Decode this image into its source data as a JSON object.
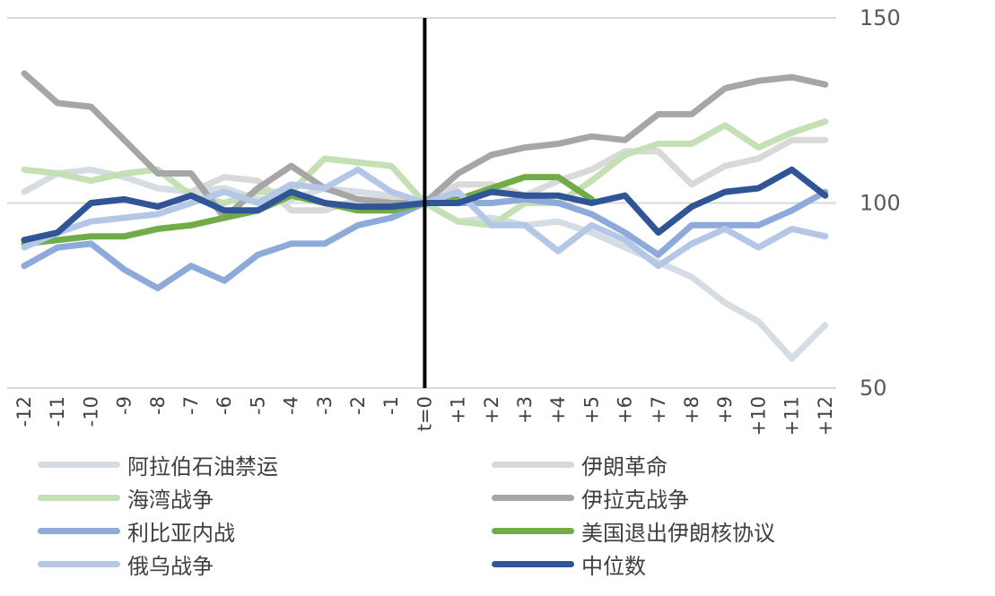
{
  "chart_data": {
    "type": "line",
    "title": "",
    "xlabel": "",
    "ylabel": "",
    "ylim": [
      50,
      150
    ],
    "yticks": [
      "50",
      "100",
      "150"
    ],
    "y_axis_position": "right",
    "grid": "horizontal",
    "legend_position": "bottom",
    "event_line_label": "t=0",
    "x": [
      "-12",
      "-11",
      "-10",
      "-9",
      "-8",
      "-7",
      "-6",
      "-5",
      "-4",
      "-3",
      "-2",
      "-1",
      "t=0",
      "+1",
      "+2",
      "+3",
      "+4",
      "+5",
      "+6",
      "+7",
      "+8",
      "+9",
      "+10",
      "+11",
      "+12"
    ],
    "series": [
      {
        "name": "阿拉伯石油禁运",
        "color": "#d6dce4",
        "values": [
          103,
          108,
          109,
          107,
          104,
          103,
          104,
          101,
          101,
          104,
          103,
          102,
          100,
          95,
          96,
          94,
          95,
          92,
          88,
          84,
          80,
          73,
          68,
          58,
          67
        ]
      },
      {
        "name": "伊朗革命",
        "color": "#d9d9d9",
        "values": [
          null,
          null,
          null,
          null,
          null,
          103,
          107,
          106,
          98,
          98,
          101,
          101,
          100,
          105,
          105,
          102,
          106,
          109,
          114,
          114,
          105,
          110,
          112,
          117,
          117
        ]
      },
      {
        "name": "海湾战争",
        "color": "#c5e0b4",
        "values": [
          109,
          108,
          106,
          108,
          109,
          102,
          100,
          103,
          103,
          112,
          111,
          110,
          100,
          95,
          94,
          100,
          100,
          106,
          113,
          116,
          116,
          121,
          115,
          119,
          122
        ]
      },
      {
        "name": "伊拉克战争",
        "color": "#a6a6a6",
        "values": [
          135,
          127,
          126,
          117,
          108,
          108,
          96,
          104,
          110,
          104,
          101,
          100,
          100,
          108,
          113,
          115,
          116,
          118,
          117,
          124,
          124,
          131,
          133,
          134,
          132
        ]
      },
      {
        "name": "利比亚内战",
        "color": "#8eaadb",
        "values": [
          83,
          88,
          89,
          82,
          77,
          83,
          79,
          86,
          89,
          89,
          94,
          96,
          100,
          100,
          100,
          101,
          100,
          97,
          92,
          86,
          94,
          94,
          94,
          98,
          103
        ]
      },
      {
        "name": "美国退出伊朗核协议",
        "color": "#70ad47",
        "values": [
          89,
          90,
          91,
          91,
          93,
          94,
          96,
          98,
          102,
          100,
          98,
          98,
          100,
          101,
          104,
          107,
          107,
          101,
          null,
          null,
          null,
          null,
          null,
          null,
          102
        ]
      },
      {
        "name": "俄乌战争",
        "color": "#b4c7e7",
        "values": [
          88,
          92,
          95,
          96,
          97,
          100,
          103,
          100,
          105,
          104,
          109,
          103,
          100,
          103,
          94,
          94,
          87,
          94,
          90,
          83,
          89,
          93,
          88,
          93,
          91
        ]
      },
      {
        "name": "中位数",
        "color": "#2f5597",
        "values": [
          90,
          92,
          100,
          101,
          99,
          102,
          98,
          98,
          103,
          100,
          99,
          99,
          100,
          100,
          103,
          102,
          102,
          100,
          102,
          92,
          99,
          103,
          104,
          109,
          102
        ]
      }
    ]
  }
}
